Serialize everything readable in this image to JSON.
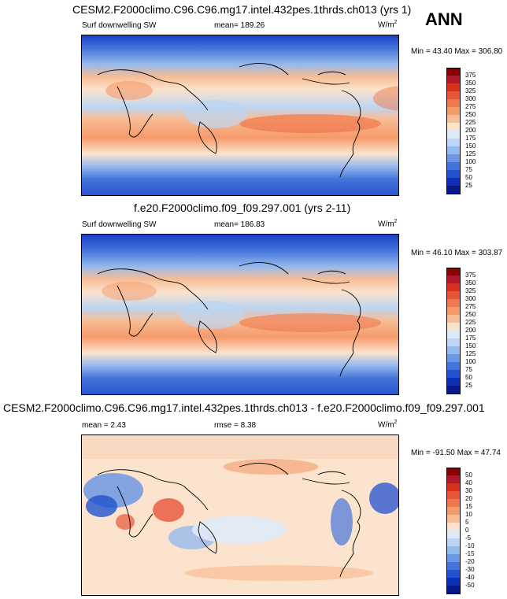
{
  "season": "ANN",
  "panels": [
    {
      "title": "CESM2.F2000climo.C96.C96.mg17.intel.432pes.1thrds.ch013 (yrs 1)",
      "left_label": "Surf downwelling SW",
      "mean_label": "mean= 189.26",
      "units": "W/m",
      "units_sup": "2",
      "minmax": "Min =  43.40 Max = 306.80"
    },
    {
      "title": "f.e20.F2000climo.f09_f09.297.001 (yrs 2-11)",
      "left_label": "Surf downwelling SW",
      "mean_label": "mean= 186.83",
      "units": "W/m",
      "units_sup": "2",
      "minmax": "Min =  46.10 Max = 303.87"
    },
    {
      "title": "CESM2.F2000climo.C96.C96.mg17.intel.432pes.1thrds.ch013 - f.e20.F2000climo.f09_f09.297.001",
      "left_label": "mean =   2.43",
      "mean_label": "rmse =   8.38",
      "units": "W/m",
      "units_sup": "2",
      "minmax": "Min = -91.50 Max =  47.74"
    }
  ],
  "colorbar_abs": {
    "labels": [
      "375",
      "350",
      "325",
      "300",
      "275",
      "250",
      "225",
      "200",
      "175",
      "150",
      "125",
      "100",
      "75",
      "50",
      "25"
    ],
    "colors": [
      "#8b0000",
      "#b2182b",
      "#d6301f",
      "#e8553a",
      "#f0784c",
      "#f59a6a",
      "#f8bd95",
      "#fbe3cd",
      "#dfeaf7",
      "#bcd5f2",
      "#95b9ec",
      "#6c97e3",
      "#4474db",
      "#2152d0",
      "#0d30b8",
      "#071a8a"
    ]
  },
  "colorbar_diff": {
    "labels": [
      "50",
      "40",
      "30",
      "20",
      "15",
      "10",
      "5",
      "0",
      "-5",
      "-10",
      "-15",
      "-20",
      "-30",
      "-40",
      "-50"
    ],
    "colors": [
      "#8b0000",
      "#b2182b",
      "#d6301f",
      "#e8553a",
      "#f0784c",
      "#f59a6a",
      "#f8bd95",
      "#fbe3cd",
      "#dfeaf7",
      "#bcd5f2",
      "#95b9ec",
      "#6c97e3",
      "#4474db",
      "#2152d0",
      "#0d30b8",
      "#071a8a"
    ]
  }
}
